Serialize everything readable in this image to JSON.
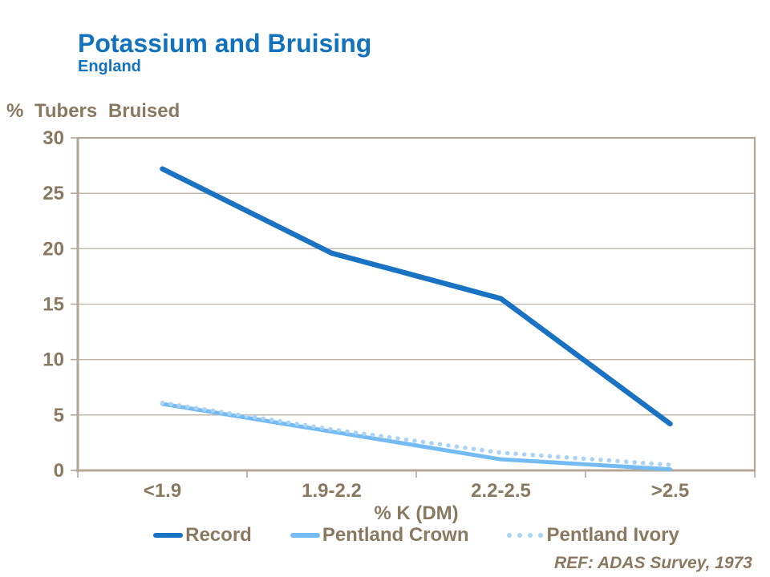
{
  "colors": {
    "title_blue": "#1272BD",
    "label_brown": "#8A7961",
    "axis_line": "#B3A79A",
    "gridline": "#BDB3A6",
    "background": "#FFFFFF"
  },
  "chart_data": {
    "type": "line",
    "title": "Potassium and Bruising",
    "subtitle": "England",
    "ylabel": "% Tubers Bruised",
    "xlabel": "% K (DM)",
    "categories": [
      "<1.9",
      "1.9-2.2",
      "2.2-2.5",
      ">2.5"
    ],
    "ylim": [
      0,
      30
    ],
    "yticks": [
      0,
      5,
      10,
      15,
      20,
      25,
      30
    ],
    "grid": "horizontal",
    "legend_position": "bottom",
    "series": [
      {
        "name": "Record",
        "values": [
          27.2,
          19.6,
          15.5,
          4.2
        ],
        "color": "#1A73C2",
        "style": "solid",
        "line_width": 6.5
      },
      {
        "name": "Pentland Crown",
        "values": [
          6.0,
          3.5,
          1.0,
          0.1
        ],
        "color": "#74BBF3",
        "style": "solid",
        "line_width": 5
      },
      {
        "name": "Pentland Ivory",
        "values": [
          6.1,
          3.7,
          1.6,
          0.5
        ],
        "color": "#A9D3F5",
        "style": "dotted",
        "line_width": 5.5
      }
    ],
    "ref": "REF: ADAS Survey, 1973"
  }
}
